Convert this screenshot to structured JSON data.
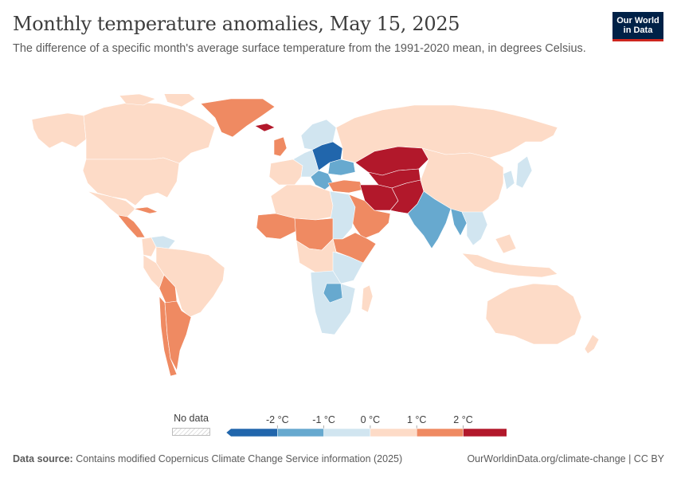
{
  "header": {
    "title": "Monthly temperature anomalies, May 15, 2025",
    "subtitle": "The difference of a specific month's average surface temperature from the 1991-2020 mean, in degrees Celsius."
  },
  "logo": {
    "line1": "Our World",
    "line2": "in Data"
  },
  "legend": {
    "no_data_label": "No data",
    "ticks": [
      "-2 °C",
      "-1 °C",
      "0 °C",
      "1 °C",
      "2 °C"
    ],
    "bins": [
      {
        "from": null,
        "to": -2,
        "color": "#2166ac"
      },
      {
        "from": -2,
        "to": -1,
        "color": "#67a9cf"
      },
      {
        "from": -1,
        "to": 0,
        "color": "#d1e5f0"
      },
      {
        "from": 0,
        "to": 1,
        "color": "#fddbc7"
      },
      {
        "from": 1,
        "to": 2,
        "color": "#ef8a62"
      },
      {
        "from": 2,
        "to": null,
        "color": "#b2182b"
      }
    ]
  },
  "footer": {
    "source_label": "Data source:",
    "source_text": "Contains modified Copernicus Climate Change Service information (2025)",
    "url": "OurWorldinData.org/climate-change | CC BY"
  },
  "colors": {
    "strong_cold": "#2166ac",
    "cold": "#67a9cf",
    "slight_cold": "#d1e5f0",
    "slight_warm": "#fddbc7",
    "warm": "#ef8a62",
    "strong_warm": "#b2182b",
    "border": "#ffffff",
    "brand": "#002147",
    "brand_accent": "#ce261e"
  },
  "regions": [
    {
      "name": "Canada",
      "category": "slight_warm"
    },
    {
      "name": "Alaska",
      "category": "slight_warm"
    },
    {
      "name": "United States",
      "category": "slight_warm"
    },
    {
      "name": "Greenland",
      "category": "warm"
    },
    {
      "name": "Iceland",
      "category": "strong_warm"
    },
    {
      "name": "Mexico",
      "category": "slight_warm"
    },
    {
      "name": "Central America",
      "category": "warm"
    },
    {
      "name": "Cuba",
      "category": "warm"
    },
    {
      "name": "Venezuela",
      "category": "slight_cold"
    },
    {
      "name": "Colombia",
      "category": "slight_warm"
    },
    {
      "name": "Brazil",
      "category": "slight_warm"
    },
    {
      "name": "Peru",
      "category": "slight_warm"
    },
    {
      "name": "Bolivia",
      "category": "warm"
    },
    {
      "name": "Argentina",
      "category": "warm"
    },
    {
      "name": "Chile",
      "category": "warm"
    },
    {
      "name": "United Kingdom",
      "category": "warm"
    },
    {
      "name": "Western Europe",
      "category": "slight_warm"
    },
    {
      "name": "Scandinavia",
      "category": "slight_cold"
    },
    {
      "name": "Central Europe",
      "category": "slight_cold"
    },
    {
      "name": "Poland and Belarus",
      "category": "strong_cold"
    },
    {
      "name": "Ukraine",
      "category": "cold"
    },
    {
      "name": "Balkans",
      "category": "cold"
    },
    {
      "name": "Turkey",
      "category": "warm"
    },
    {
      "name": "Russia",
      "category": "slight_warm"
    },
    {
      "name": "Kazakhstan",
      "category": "strong_warm"
    },
    {
      "name": "Central Asia",
      "category": "strong_warm"
    },
    {
      "name": "Iran",
      "category": "strong_warm"
    },
    {
      "name": "Afghanistan and Pakistan",
      "category": "strong_warm"
    },
    {
      "name": "Arabian Peninsula",
      "category": "warm"
    },
    {
      "name": "Mongolia and China",
      "category": "slight_warm"
    },
    {
      "name": "Korea and Japan",
      "category": "slight_cold"
    },
    {
      "name": "India",
      "category": "cold"
    },
    {
      "name": "Myanmar",
      "category": "cold"
    },
    {
      "name": "Southeast Asia",
      "category": "slight_cold"
    },
    {
      "name": "Indonesia",
      "category": "slight_warm"
    },
    {
      "name": "Australia",
      "category": "slight_warm"
    },
    {
      "name": "New Zealand",
      "category": "slight_warm"
    },
    {
      "name": "North Africa",
      "category": "slight_warm"
    },
    {
      "name": "Egypt and Sudan",
      "category": "slight_cold"
    },
    {
      "name": "West Africa",
      "category": "warm"
    },
    {
      "name": "Sahel Belt",
      "category": "warm"
    },
    {
      "name": "Horn of Africa",
      "category": "warm"
    },
    {
      "name": "Central Africa",
      "category": "slight_warm"
    },
    {
      "name": "East Africa",
      "category": "slight_cold"
    },
    {
      "name": "Southern Africa",
      "category": "slight_cold"
    },
    {
      "name": "Zimbabwe",
      "category": "cold"
    },
    {
      "name": "Madagascar",
      "category": "slight_warm"
    }
  ]
}
